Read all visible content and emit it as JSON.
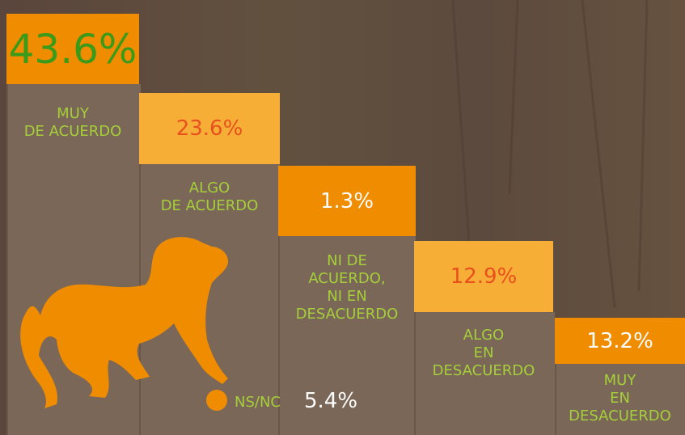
{
  "items": [
    {
      "value": "43.6%",
      "label": [
        "MUY",
        "DE ACUERDO"
      ]
    },
    {
      "value": "23.6%",
      "label": [
        "ALGO",
        "DE ACUERDO"
      ]
    },
    {
      "value": "1.3%",
      "label": [
        "NI DE",
        "ACUERDO,",
        "NI EN",
        "DESACUERDO"
      ]
    },
    {
      "value": "12.9%",
      "label": [
        "ALGO",
        "EN",
        "DESACUERDO"
      ]
    },
    {
      "value": "13.2%",
      "label": [
        "MUY",
        "EN",
        "DESACUERDO"
      ]
    }
  ],
  "ns": {
    "label": "NS/NC",
    "value": "5.4%"
  }
}
